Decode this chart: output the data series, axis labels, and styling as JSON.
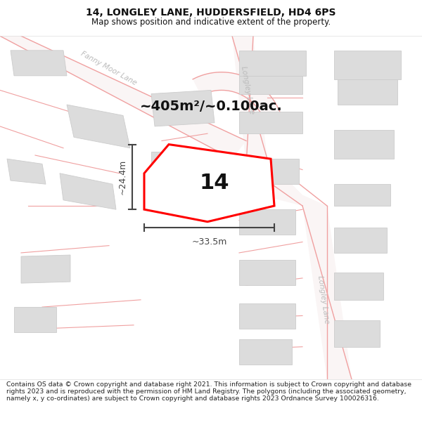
{
  "title": "14, LONGLEY LANE, HUDDERSFIELD, HD4 6PS",
  "subtitle": "Map shows position and indicative extent of the property.",
  "area_text": "~405m²/~0.100ac.",
  "property_number": "14",
  "dim_width": "~33.5m",
  "dim_height": "~24.4m",
  "map_bg": "#f7f7f7",
  "road_fill": "#faf5f5",
  "road_stroke": "#f0a0a0",
  "building_fill": "#dcdcdc",
  "building_stroke": "#cccccc",
  "property_fill": "#f5f5f5",
  "property_stroke": "#ff0000",
  "dim_color": "#444444",
  "text_color": "#111111",
  "road_text_color": "#bbbbbb",
  "footer_text": "Contains OS data © Crown copyright and database right 2021. This information is subject to Crown copyright and database rights 2023 and is reproduced with the permission of HM Land Registry. The polygons (including the associated geometry, namely x, y co-ordinates) are subject to Crown copyright and database rights 2023 Ordnance Survey 100026316.",
  "title_fontsize": 10,
  "subtitle_fontsize": 8.5
}
